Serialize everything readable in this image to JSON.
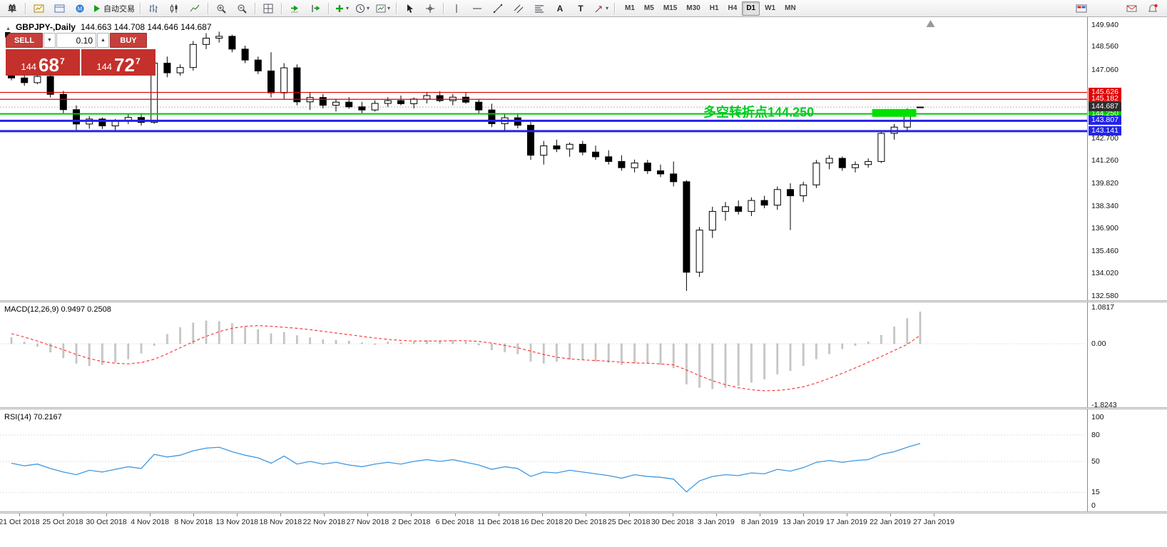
{
  "toolbar": {
    "items": [
      {
        "name": "new-order-button",
        "type": "text",
        "text": "单"
      },
      {
        "type": "sep"
      },
      {
        "name": "new-chart-button",
        "icon": "newchart"
      },
      {
        "name": "profiles-button",
        "icon": "profiles"
      },
      {
        "name": "community-button",
        "icon": "community"
      },
      {
        "name": "autotrading-button",
        "icon": "autotrade",
        "label": "自动交易"
      },
      {
        "type": "sep"
      },
      {
        "name": "bar-chart-button",
        "icon": "bars"
      },
      {
        "name": "candlestick-chart-button",
        "icon": "candles"
      },
      {
        "name": "line-chart-button",
        "icon": "linechart"
      },
      {
        "type": "sep"
      },
      {
        "name": "zoom-in-button",
        "icon": "zoomin"
      },
      {
        "name": "zoom-out-button",
        "icon": "zoomout"
      },
      {
        "type": "sep"
      },
      {
        "name": "tile-windows-button",
        "icon": "tile"
      },
      {
        "type": "sep"
      },
      {
        "name": "auto-scroll-button",
        "icon": "autoscroll"
      },
      {
        "name": "chart-shift-button",
        "icon": "shift"
      },
      {
        "type": "sep"
      },
      {
        "name": "indicators-button",
        "icon": "indicators",
        "dropdown": true
      },
      {
        "name": "periods-button",
        "icon": "clock",
        "dropdown": true
      },
      {
        "name": "templates-button",
        "icon": "template",
        "dropdown": true
      },
      {
        "type": "sep"
      },
      {
        "name": "cursor-button",
        "icon": "cursor"
      },
      {
        "name": "crosshair-button",
        "icon": "crosshair"
      },
      {
        "type": "sep"
      },
      {
        "name": "vertical-line-button",
        "icon": "vline"
      },
      {
        "name": "horizontal-line-button",
        "icon": "hline"
      },
      {
        "name": "trendline-button",
        "icon": "trend"
      },
      {
        "name": "channel-button",
        "icon": "channel"
      },
      {
        "name": "fibonacci-button",
        "icon": "fib"
      },
      {
        "name": "text-button",
        "type": "text",
        "text": "A"
      },
      {
        "name": "text-label-button",
        "type": "text",
        "text": "T"
      },
      {
        "name": "shapes-button",
        "icon": "shapes",
        "dropdown": true
      },
      {
        "type": "sep"
      }
    ],
    "timeframes": {
      "options": [
        "M1",
        "M5",
        "M15",
        "M30",
        "H1",
        "H4",
        "D1",
        "W1",
        "MN"
      ],
      "active": "D1"
    },
    "right_items": [
      {
        "name": "window-layout-button",
        "icon": "winlayout"
      },
      {
        "spacer": true
      },
      {
        "name": "messages-button",
        "icon": "message"
      },
      {
        "name": "alerts-button",
        "icon": "alertbell"
      }
    ]
  },
  "chart": {
    "title": "GBPJPY-,Daily",
    "ohlc": "144.663 144.708 144.646 144.687",
    "trade_panel": {
      "sell": "SELL",
      "buy": "BUY",
      "volume": "0.10",
      "bid_prefix": "144",
      "bid_big": "68",
      "bid_sup": "7",
      "ask_prefix": "144",
      "ask_big": "72",
      "ask_sup": "7"
    },
    "levels": [
      {
        "price": 145.626,
        "label": "145.626",
        "color": "#e10000",
        "width": 1.2
      },
      {
        "price": 145.182,
        "label": "145.182",
        "color": "#e10000",
        "width": 1.2
      },
      {
        "price": 144.25,
        "label": "144.250",
        "color": "#00c400",
        "width": 2
      },
      {
        "price": 143.807,
        "label": "143.807",
        "color": "#2323e8",
        "width": 3
      },
      {
        "price": 143.141,
        "label": "143.141",
        "color": "#2323e8",
        "width": 3
      }
    ],
    "current": {
      "price": 144.687,
      "label": "144.687",
      "box_color": "#2d2d2d",
      "line_color": "#b5b5b5"
    },
    "annotation": {
      "text": "多空转折点144.250",
      "color": "#00cc22",
      "bar": 53.3,
      "price": 144.4
    },
    "highlight": {
      "bar_start": 66.3,
      "bar_end": 69.7,
      "price_top": 144.56,
      "price_bottom": 144.06,
      "color": "#00e000"
    },
    "axis_ticks": [
      "149.940",
      "148.560",
      "147.060",
      "142.700",
      "141.260",
      "139.820",
      "138.340",
      "136.900",
      "135.460",
      "134.020",
      "132.580"
    ],
    "shift_marker_bar": 70.8
  },
  "macd": {
    "header": "MACD(12,26,9) 0.9497 0.2508",
    "axis": [
      {
        "label": "1.0817",
        "v": 1.0817
      },
      {
        "label": "0.00",
        "v": 0
      },
      {
        "label": "-1.8243",
        "v": -1.8243
      }
    ]
  },
  "rsi": {
    "header": "RSI(14) 70.2167",
    "axis": [
      {
        "label": "100",
        "v": 100
      },
      {
        "label": "80",
        "v": 80
      },
      {
        "label": "50",
        "v": 50
      },
      {
        "label": "15",
        "v": 15
      },
      {
        "label": "0",
        "v": 0
      }
    ],
    "level_lines": [
      80,
      50,
      15
    ]
  },
  "colors": {
    "bull": "#ffffff",
    "bear": "#000000",
    "wick": "#000000",
    "macd_hist_fill": "#d0d0d0",
    "macd_hist_stroke": "#a2a2a2",
    "macd_signal": "#ff2a2a",
    "rsi_line": "#3f97e0",
    "dotted_grid": "#c8c8c8"
  },
  "chart_data": [
    {
      "type": "candlestick",
      "symbol": "GBPJPY-",
      "timeframe": "Daily",
      "ylim": [
        132.58,
        149.94
      ],
      "x_labels": [
        "21 Oct 2018",
        "25 Oct 2018",
        "30 Oct 2018",
        "4 Nov 2018",
        "8 Nov 2018",
        "13 Nov 2018",
        "18 Nov 2018",
        "22 Nov 2018",
        "27 Nov 2018",
        "2 Dec 2018",
        "6 Dec 2018",
        "11 Dec 2018",
        "16 Dec 2018",
        "20 Dec 2018",
        "25 Dec 2018",
        "30 Dec 2018",
        "3 Jan 2019",
        "8 Jan 2019",
        "13 Jan 2019",
        "17 Jan 2019",
        "22 Jan 2019",
        "27 Jan 2019"
      ],
      "horizontal_levels": [
        145.626,
        145.182,
        144.25,
        143.807,
        143.141
      ],
      "current_price": 144.687,
      "candles": [
        [
          146.9,
          147.15,
          146.4,
          146.55
        ],
        [
          146.55,
          146.8,
          146.05,
          146.25
        ],
        [
          146.25,
          146.75,
          146.15,
          146.65
        ],
        [
          146.65,
          146.72,
          145.3,
          145.5
        ],
        [
          145.5,
          145.72,
          144.3,
          144.52
        ],
        [
          144.52,
          144.8,
          143.18,
          143.6
        ],
        [
          143.6,
          144.1,
          143.3,
          143.92
        ],
        [
          143.92,
          144.02,
          143.28,
          143.48
        ],
        [
          143.48,
          143.92,
          143.2,
          143.8
        ],
        [
          143.8,
          144.22,
          143.6,
          144.02
        ],
        [
          144.02,
          144.3,
          143.5,
          143.7
        ],
        [
          143.7,
          147.72,
          143.62,
          147.5
        ],
        [
          147.5,
          147.92,
          146.6,
          146.88
        ],
        [
          146.88,
          147.42,
          146.7,
          147.22
        ],
        [
          147.22,
          148.92,
          147.02,
          148.7
        ],
        [
          148.7,
          149.42,
          148.4,
          149.1
        ],
        [
          149.1,
          149.52,
          148.82,
          149.22
        ],
        [
          149.22,
          149.32,
          148.2,
          148.4
        ],
        [
          148.4,
          148.62,
          147.5,
          147.7
        ],
        [
          147.7,
          147.92,
          146.8,
          147.0
        ],
        [
          147.0,
          148.2,
          145.3,
          145.6
        ],
        [
          145.6,
          147.5,
          145.2,
          147.2
        ],
        [
          147.2,
          147.42,
          144.8,
          145.02
        ],
        [
          145.02,
          145.62,
          144.5,
          145.3
        ],
        [
          145.3,
          145.52,
          144.6,
          144.8
        ],
        [
          144.8,
          145.22,
          144.4,
          145.0
        ],
        [
          145.0,
          145.32,
          144.58,
          144.7
        ],
        [
          144.7,
          145.02,
          144.3,
          144.5
        ],
        [
          144.5,
          145.12,
          144.4,
          144.92
        ],
        [
          144.92,
          145.32,
          144.7,
          145.1
        ],
        [
          145.1,
          145.42,
          144.8,
          144.9
        ],
        [
          144.9,
          145.3,
          144.6,
          145.2
        ],
        [
          145.2,
          145.6,
          144.92,
          145.42
        ],
        [
          145.42,
          145.7,
          145.0,
          145.1
        ],
        [
          145.1,
          145.52,
          144.8,
          145.32
        ],
        [
          145.32,
          145.6,
          144.9,
          145.0
        ],
        [
          145.0,
          145.2,
          144.3,
          144.5
        ],
        [
          144.5,
          144.9,
          143.4,
          143.62
        ],
        [
          143.62,
          144.22,
          143.2,
          144.0
        ],
        [
          144.0,
          144.3,
          143.32,
          143.52
        ],
        [
          143.52,
          143.72,
          141.3,
          141.6
        ],
        [
          141.6,
          142.52,
          141.0,
          142.2
        ],
        [
          142.2,
          142.6,
          141.8,
          142.0
        ],
        [
          142.0,
          142.42,
          141.5,
          142.3
        ],
        [
          142.3,
          142.52,
          141.6,
          141.8
        ],
        [
          141.8,
          142.22,
          141.3,
          141.5
        ],
        [
          141.5,
          141.92,
          141.0,
          141.2
        ],
        [
          141.2,
          141.6,
          140.6,
          140.8
        ],
        [
          140.8,
          141.32,
          140.5,
          141.1
        ],
        [
          141.1,
          141.3,
          140.4,
          140.6
        ],
        [
          140.6,
          141.0,
          140.2,
          140.4
        ],
        [
          140.4,
          141.2,
          139.6,
          139.9
        ],
        [
          139.9,
          140.0,
          132.9,
          134.1
        ],
        [
          134.1,
          137.0,
          133.8,
          136.8
        ],
        [
          136.8,
          138.3,
          136.3,
          138.0
        ],
        [
          138.0,
          138.6,
          137.4,
          138.3
        ],
        [
          138.3,
          138.7,
          137.8,
          138.0
        ],
        [
          138.0,
          138.9,
          137.7,
          138.7
        ],
        [
          138.7,
          139.0,
          138.2,
          138.4
        ],
        [
          138.4,
          139.6,
          138.1,
          139.4
        ],
        [
          139.4,
          139.8,
          136.8,
          139.0
        ],
        [
          139.0,
          139.9,
          138.6,
          139.7
        ],
        [
          139.7,
          141.3,
          139.5,
          141.1
        ],
        [
          141.1,
          141.6,
          140.7,
          141.4
        ],
        [
          141.4,
          141.52,
          140.6,
          140.8
        ],
        [
          140.8,
          141.2,
          140.5,
          141.0
        ],
        [
          141.0,
          141.4,
          140.8,
          141.2
        ],
        [
          141.2,
          143.2,
          141.1,
          143.0
        ],
        [
          143.0,
          143.6,
          142.6,
          143.4
        ],
        [
          143.4,
          144.6,
          143.2,
          144.5
        ],
        [
          144.663,
          144.708,
          144.646,
          144.687
        ]
      ]
    },
    {
      "type": "bar",
      "name": "MACD(12,26,9)",
      "ylim": [
        -1.8243,
        1.0817
      ],
      "current_values": [
        0.9497,
        0.2508
      ],
      "values": [
        0.18,
        0.05,
        -0.08,
        -0.25,
        -0.42,
        -0.58,
        -0.65,
        -0.62,
        -0.55,
        -0.45,
        -0.28,
        -0.05,
        0.28,
        0.48,
        0.62,
        0.68,
        0.66,
        0.6,
        0.5,
        0.42,
        0.3,
        0.34,
        0.24,
        0.18,
        0.12,
        0.1,
        0.08,
        0.03,
        0.0,
        0.05,
        0.03,
        0.06,
        0.1,
        0.09,
        0.1,
        0.06,
        -0.04,
        -0.18,
        -0.24,
        -0.3,
        -0.52,
        -0.58,
        -0.52,
        -0.46,
        -0.46,
        -0.52,
        -0.56,
        -0.62,
        -0.58,
        -0.58,
        -0.62,
        -0.72,
        -1.2,
        -1.3,
        -1.34,
        -1.3,
        -1.25,
        -1.15,
        -1.05,
        -0.9,
        -0.8,
        -0.65,
        -0.45,
        -0.3,
        -0.15,
        -0.05,
        0.05,
        0.25,
        0.5,
        0.75,
        0.9497
      ],
      "signal": [
        0.3,
        0.2,
        0.08,
        -0.05,
        -0.18,
        -0.32,
        -0.44,
        -0.53,
        -0.58,
        -0.6,
        -0.56,
        -0.46,
        -0.3,
        -0.12,
        0.06,
        0.22,
        0.36,
        0.46,
        0.52,
        0.54,
        0.52,
        0.49,
        0.46,
        0.42,
        0.37,
        0.32,
        0.27,
        0.22,
        0.17,
        0.13,
        0.1,
        0.08,
        0.08,
        0.08,
        0.09,
        0.09,
        0.07,
        0.02,
        -0.05,
        -0.12,
        -0.22,
        -0.32,
        -0.4,
        -0.45,
        -0.48,
        -0.5,
        -0.52,
        -0.55,
        -0.57,
        -0.58,
        -0.6,
        -0.63,
        -0.78,
        -0.95,
        -1.1,
        -1.22,
        -1.31,
        -1.37,
        -1.4,
        -1.39,
        -1.35,
        -1.28,
        -1.17,
        -1.03,
        -0.88,
        -0.72,
        -0.55,
        -0.38,
        -0.2,
        -0.02,
        0.2508
      ]
    },
    {
      "type": "line",
      "name": "RSI(14)",
      "ylim": [
        0,
        100
      ],
      "levels": [
        80,
        50,
        15
      ],
      "current_value": 70.2167,
      "values": [
        48,
        45,
        47,
        42,
        38,
        35,
        40,
        38,
        41,
        44,
        42,
        58,
        55,
        57,
        62,
        65,
        66,
        61,
        57,
        54,
        48,
        56,
        47,
        50,
        47,
        49,
        46,
        44,
        47,
        49,
        47,
        50,
        52,
        50,
        52,
        49,
        46,
        41,
        44,
        42,
        33,
        38,
        37,
        40,
        38,
        36,
        34,
        31,
        35,
        33,
        32,
        30,
        15.5,
        28,
        33,
        35,
        34,
        37,
        36,
        41,
        39,
        43,
        49,
        51,
        49,
        51,
        52,
        58,
        61,
        66,
        70.2167
      ]
    }
  ]
}
